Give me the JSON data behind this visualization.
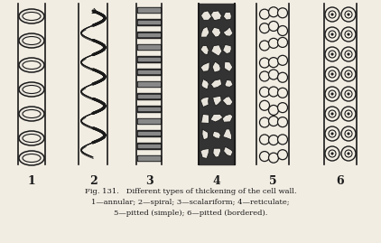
{
  "title_line1": "Fig. 131.   Different types of thickening of the cell wall.",
  "title_line2": "1—annular; 2—spiral; 3—scalariform; 4—reticulate;",
  "title_line3": "5—pitted (simple); 6—pitted (bordered).",
  "labels": [
    "1",
    "2",
    "3",
    "4",
    "5",
    "6"
  ],
  "bg_color": "#f2ede3",
  "line_color": "#1a1a1a",
  "figure_width": 4.22,
  "figure_height": 2.69,
  "dpi": 100
}
